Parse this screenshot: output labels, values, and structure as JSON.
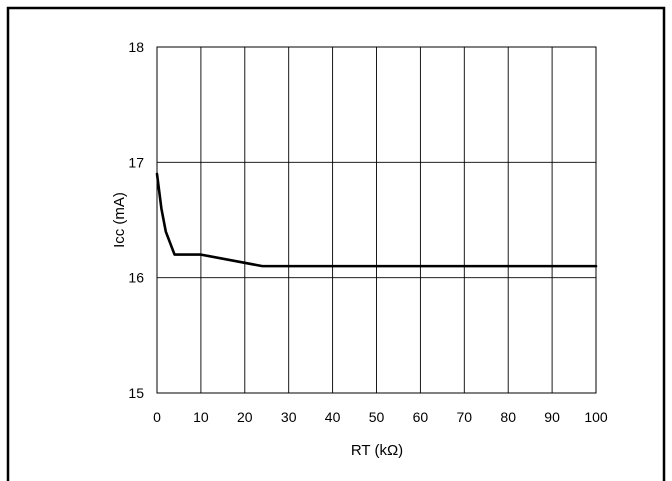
{
  "chart_data": {
    "type": "line",
    "title": "",
    "xlabel": "RT (kΩ)",
    "ylabel": "Icc   (mA)",
    "xlim": [
      0,
      100
    ],
    "ylim": [
      15,
      18
    ],
    "xticks": [
      0,
      10,
      20,
      30,
      40,
      50,
      60,
      70,
      80,
      90,
      100
    ],
    "yticks": [
      15,
      16,
      17,
      18
    ],
    "xtick_labels": [
      "0",
      "10",
      "20",
      "30",
      "40",
      "50",
      "60",
      "70",
      "80",
      "90",
      "100"
    ],
    "ytick_labels": [
      "15",
      "16",
      "17",
      "18"
    ],
    "grid": true,
    "legend": "none",
    "series": [
      {
        "x": [
          0,
          0.5,
          1,
          2,
          4,
          10,
          24,
          30,
          40,
          50,
          60,
          70,
          80,
          90,
          100
        ],
        "y": [
          16.9,
          16.75,
          16.6,
          16.4,
          16.2,
          16.2,
          16.1,
          16.1,
          16.1,
          16.1,
          16.1,
          16.1,
          16.1,
          16.1,
          16.1
        ],
        "color": "#000000"
      }
    ]
  }
}
